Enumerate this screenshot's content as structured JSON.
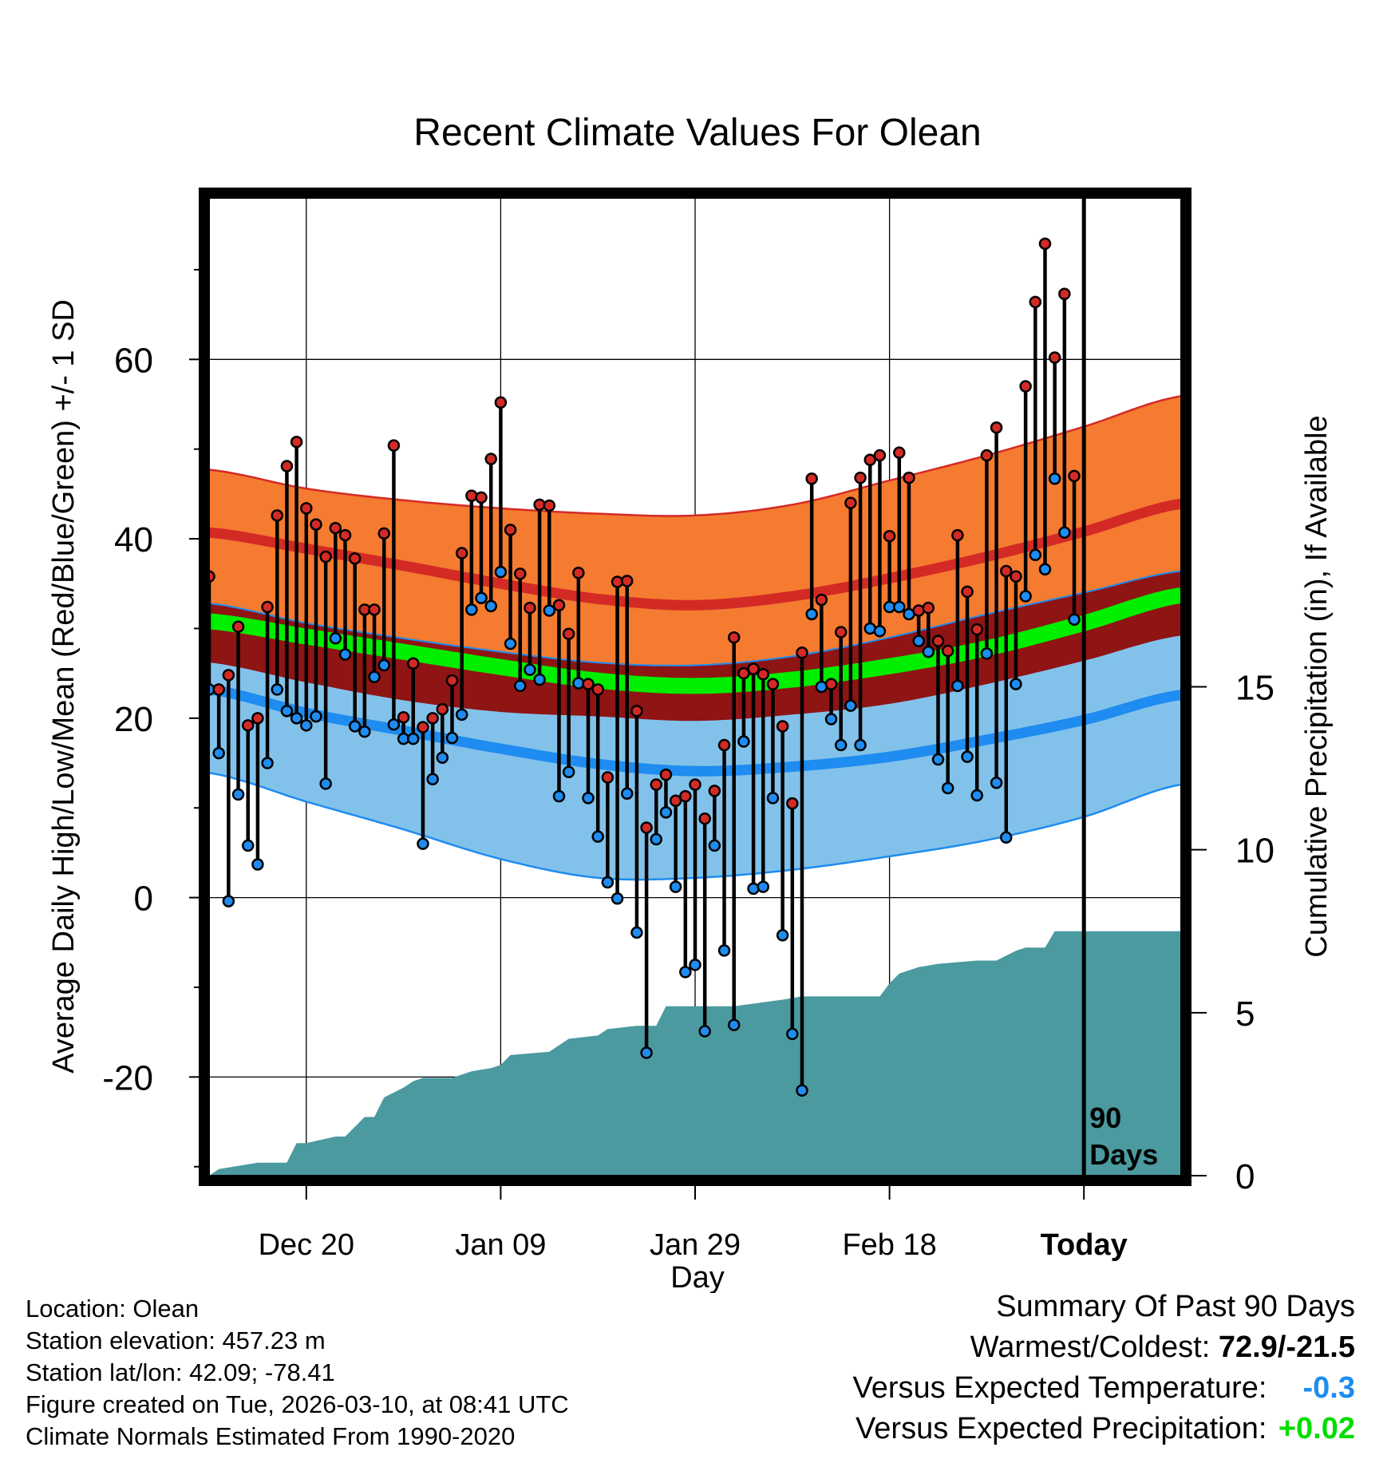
{
  "title": "Recent Climate Values For Olean",
  "colors": {
    "high_band": "#f47b30",
    "high_edge": "#d42a26",
    "mean_band": "#00ee00",
    "mean_dark": "#8f1414",
    "low_band": "#82c2ea",
    "low_edge": "#1e8cf0",
    "precip": "#4a9aa0",
    "high_dot": "#d42a26",
    "low_dot": "#1e8cf0"
  },
  "chart_data": {
    "type": "line",
    "title": "Recent Climate Values For Olean",
    "xlabel": "Day",
    "ylabel": "Average Daily High/Low/Mean (Red/Blue/Green) +/- 1 SD",
    "y2label": "Cumulative Precipitation (in), If Available",
    "ylim": [
      -31,
      78
    ],
    "y2lim": [
      0,
      30
    ],
    "xlim": [
      1,
      101
    ],
    "yticks": [
      -20,
      0,
      20,
      40,
      60
    ],
    "y2ticks": [
      0,
      5,
      10,
      15
    ],
    "xticks": [
      {
        "day": 11,
        "label": "Dec 20"
      },
      {
        "day": 31,
        "label": "Jan 09"
      },
      {
        "day": 51,
        "label": "Jan 29"
      },
      {
        "day": 71,
        "label": "Feb 18"
      },
      {
        "day": 91,
        "label": "Today"
      }
    ],
    "marker": {
      "day": 91,
      "label_line1": "90",
      "label_line2": "Days"
    },
    "normal_days": [
      1,
      11,
      21,
      31,
      41,
      51,
      61,
      71,
      81,
      91,
      101
    ],
    "normal_high": [
      40.7,
      38.9,
      37.0,
      35.0,
      33.3,
      32.6,
      33.6,
      35.6,
      38.0,
      40.8,
      43.9
    ],
    "normal_high_upper": [
      47.7,
      45.6,
      44.3,
      43.4,
      42.8,
      42.6,
      43.8,
      46.5,
      49.3,
      52.5,
      55.9
    ],
    "normal_high_lower": [
      32.8,
      30.6,
      28.9,
      27.4,
      26.2,
      25.9,
      26.9,
      29.0,
      31.6,
      34.0,
      36.4
    ],
    "normal_mean": [
      30.8,
      29.1,
      27.4,
      25.7,
      24.2,
      23.6,
      24.3,
      25.8,
      27.8,
      30.6,
      33.7
    ],
    "normal_low": [
      23.2,
      20.6,
      18.6,
      16.6,
      14.9,
      14.1,
      14.6,
      15.7,
      17.6,
      19.8,
      22.6
    ],
    "normal_low_upper": [
      32.4,
      30.4,
      28.3,
      26.7,
      25.3,
      25.2,
      25.5,
      27.4,
      29.2,
      30.9,
      32.1
    ],
    "normal_low_lower": [
      13.9,
      10.7,
      7.6,
      4.3,
      2.2,
      2.2,
      3.1,
      4.6,
      6.4,
      9.0,
      12.6
    ],
    "normal_mean_lower": [
      26.2,
      24.0,
      22.0,
      20.7,
      20.2,
      19.7,
      20.4,
      21.6,
      23.8,
      26.4,
      29.2
    ],
    "observed": {
      "days": [
        1,
        2,
        3,
        4,
        5,
        6,
        7,
        8,
        9,
        10,
        11,
        12,
        13,
        14,
        15,
        16,
        17,
        18,
        19,
        20,
        21,
        22,
        23,
        24,
        25,
        26,
        27,
        28,
        29,
        30,
        31,
        32,
        33,
        34,
        35,
        36,
        37,
        38,
        39,
        40,
        41,
        42,
        43,
        44,
        45,
        46,
        47,
        48,
        49,
        50,
        51,
        52,
        53,
        54,
        55,
        56,
        57,
        58,
        59,
        60,
        61,
        62,
        63,
        64,
        65,
        66,
        67,
        68,
        69,
        70,
        71,
        72,
        73,
        74,
        75,
        76,
        77,
        78,
        79,
        80,
        81,
        82,
        83,
        84,
        85,
        86,
        87,
        88,
        89,
        90
      ],
      "high": [
        35.8,
        23.2,
        24.8,
        30.2,
        19.2,
        20.0,
        32.4,
        42.6,
        48.1,
        50.8,
        43.4,
        41.6,
        38.0,
        41.2,
        40.4,
        37.8,
        32.1,
        32.1,
        40.6,
        50.4,
        20.1,
        26.1,
        19.0,
        20.0,
        21.0,
        24.2,
        38.4,
        44.8,
        44.6,
        48.9,
        55.2,
        41.0,
        36.1,
        32.3,
        43.8,
        43.7,
        32.6,
        29.4,
        36.2,
        23.8,
        23.2,
        13.4,
        35.2,
        35.3,
        20.8,
        7.8,
        12.6,
        13.7,
        10.8,
        11.3,
        12.6,
        8.8,
        11.9,
        17.0,
        29.0,
        25.0,
        25.5,
        24.9,
        23.8,
        19.1,
        10.5,
        27.3,
        46.7,
        33.2,
        23.8,
        29.6,
        44.0,
        46.8,
        48.8,
        49.3,
        40.3,
        49.6,
        46.8,
        32.0,
        32.3,
        28.6,
        27.5,
        40.4,
        34.1,
        29.9,
        49.3,
        52.4,
        36.4,
        35.8,
        57.0,
        66.4,
        72.9,
        60.2,
        67.3,
        47.0
      ],
      "low": [
        23.2,
        16.1,
        -0.4,
        11.5,
        5.8,
        3.7,
        15.0,
        23.2,
        20.8,
        20.0,
        19.2,
        20.2,
        12.7,
        28.9,
        27.1,
        19.1,
        18.5,
        24.6,
        25.9,
        19.3,
        17.7,
        17.7,
        6.0,
        13.2,
        15.6,
        17.8,
        20.4,
        32.1,
        33.4,
        32.5,
        36.3,
        28.3,
        23.6,
        25.4,
        24.3,
        32.0,
        11.3,
        14.0,
        23.9,
        11.1,
        6.8,
        1.7,
        -0.1,
        11.6,
        -3.9,
        -17.3,
        6.5,
        9.5,
        1.2,
        -8.3,
        -7.5,
        -14.9,
        5.8,
        -5.9,
        -14.2,
        17.4,
        1.0,
        1.2,
        11.1,
        -4.2,
        -15.2,
        -21.5,
        31.6,
        23.5,
        19.9,
        17.0,
        21.4,
        17.0,
        30.0,
        29.7,
        32.4,
        32.4,
        31.6,
        28.6,
        27.4,
        15.4,
        12.2,
        23.6,
        15.7,
        11.4,
        27.2,
        12.8,
        6.7,
        23.8,
        33.6,
        38.2,
        36.6,
        46.7,
        40.7,
        31.0
      ]
    },
    "precip_days": [
      1,
      2,
      4,
      6,
      8,
      9,
      10,
      11,
      14,
      15,
      17,
      18,
      19,
      21,
      22,
      23,
      24,
      26,
      28,
      30,
      31,
      32,
      36,
      38,
      41,
      42,
      45,
      47,
      48,
      50,
      55,
      60,
      62,
      65,
      70,
      71,
      72,
      74,
      76,
      80,
      82,
      84,
      85,
      87,
      88,
      101
    ],
    "precip_cum": [
      0.0,
      0.2,
      0.3,
      0.4,
      0.4,
      0.4,
      1.0,
      1.0,
      1.2,
      1.2,
      1.8,
      1.8,
      2.4,
      2.7,
      2.9,
      3.0,
      3.0,
      3.0,
      3.2,
      3.3,
      3.4,
      3.7,
      3.8,
      4.2,
      4.3,
      4.5,
      4.6,
      4.6,
      5.2,
      5.2,
      5.2,
      5.4,
      5.5,
      5.5,
      5.5,
      5.9,
      6.2,
      6.4,
      6.5,
      6.6,
      6.6,
      6.9,
      7.0,
      7.0,
      7.5,
      7.5
    ]
  },
  "location_info": {
    "location": "Location: Olean",
    "elevation": "Station elevation: 457.23 m",
    "latlon": "Station lat/lon: 42.09; -78.41",
    "created": "Figure created on Tue, 2026-03-10, at 08:41 UTC",
    "normals": "Climate Normals Estimated From 1990-2020"
  },
  "summary": {
    "heading": "Summary Of Past 90 Days",
    "warmest_label": "Warmest/Coldest:",
    "warmest_value": "72.9/-21.5",
    "temp_label": "Versus Expected Temperature:",
    "temp_value": "-0.3",
    "temp_color": "#1e8cf0",
    "precip_label": "Versus Expected Precipitation:",
    "precip_value": "+0.02",
    "precip_color": "#00dd00"
  }
}
